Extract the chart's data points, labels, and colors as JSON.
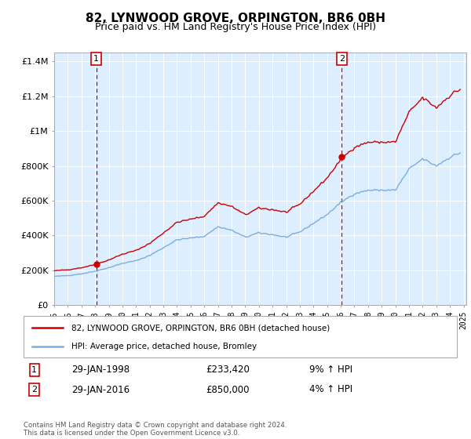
{
  "title": "82, LYNWOOD GROVE, ORPINGTON, BR6 0BH",
  "subtitle": "Price paid vs. HM Land Registry's House Price Index (HPI)",
  "ylim": [
    0,
    1450000
  ],
  "yticks": [
    0,
    200000,
    400000,
    600000,
    800000,
    1000000,
    1200000,
    1400000
  ],
  "ytick_labels": [
    "£0",
    "£200K",
    "£400K",
    "£600K",
    "£800K",
    "£1M",
    "£1.2M",
    "£1.4M"
  ],
  "sale1_year": 1998.08,
  "sale1_price": 233420,
  "sale2_year": 2016.08,
  "sale2_price": 850000,
  "line_color_house": "#cc0000",
  "line_color_hpi": "#7aade0",
  "fill_color_hpi": "#ddeeff",
  "background_color": "#ffffff",
  "grid_color": "#cccccc",
  "legend_house": "82, LYNWOOD GROVE, ORPINGTON, BR6 0BH (detached house)",
  "legend_hpi": "HPI: Average price, detached house, Bromley",
  "annotation1_text": "29-JAN-1998",
  "annotation1_price": "£233,420",
  "annotation1_hpi": "9% ↑ HPI",
  "annotation2_text": "29-JAN-2016",
  "annotation2_price": "£850,000",
  "annotation2_hpi": "4% ↑ HPI",
  "footer": "Contains HM Land Registry data © Crown copyright and database right 2024.\nThis data is licensed under the Open Government Licence v3.0.",
  "hpi_x": [
    1995.0,
    1995.08,
    1995.17,
    1995.25,
    1995.33,
    1995.42,
    1995.5,
    1995.58,
    1995.67,
    1995.75,
    1995.83,
    1995.92,
    1996.0,
    1996.08,
    1996.17,
    1996.25,
    1996.33,
    1996.42,
    1996.5,
    1996.58,
    1996.67,
    1996.75,
    1996.83,
    1996.92,
    1997.0,
    1997.08,
    1997.17,
    1997.25,
    1997.33,
    1997.42,
    1997.5,
    1997.58,
    1997.67,
    1997.75,
    1997.83,
    1997.92,
    1998.0,
    1998.08,
    1998.17,
    1998.25,
    1998.33,
    1998.42,
    1998.5,
    1998.58,
    1998.67,
    1998.75,
    1998.83,
    1998.92,
    1999.0,
    1999.08,
    1999.17,
    1999.25,
    1999.33,
    1999.42,
    1999.5,
    1999.58,
    1999.67,
    1999.75,
    1999.83,
    1999.92,
    2000.0,
    2000.08,
    2000.17,
    2000.25,
    2000.33,
    2000.42,
    2000.5,
    2000.58,
    2000.67,
    2000.75,
    2000.83,
    2000.92,
    2001.0,
    2001.08,
    2001.17,
    2001.25,
    2001.33,
    2001.42,
    2001.5,
    2001.58,
    2001.67,
    2001.75,
    2001.83,
    2001.92,
    2002.0,
    2002.08,
    2002.17,
    2002.25,
    2002.33,
    2002.42,
    2002.5,
    2002.58,
    2002.67,
    2002.75,
    2002.83,
    2002.92,
    2003.0,
    2003.08,
    2003.17,
    2003.25,
    2003.33,
    2003.42,
    2003.5,
    2003.58,
    2003.67,
    2003.75,
    2003.83,
    2003.92,
    2004.0,
    2004.08,
    2004.17,
    2004.25,
    2004.33,
    2004.42,
    2004.5,
    2004.58,
    2004.67,
    2004.75,
    2004.83,
    2004.92,
    2005.0,
    2005.08,
    2005.17,
    2005.25,
    2005.33,
    2005.42,
    2005.5,
    2005.58,
    2005.67,
    2005.75,
    2005.83,
    2005.92,
    2006.0,
    2006.08,
    2006.17,
    2006.25,
    2006.33,
    2006.42,
    2006.5,
    2006.58,
    2006.67,
    2006.75,
    2006.83,
    2006.92,
    2007.0,
    2007.08,
    2007.17,
    2007.25,
    2007.33,
    2007.42,
    2007.5,
    2007.58,
    2007.67,
    2007.75,
    2007.83,
    2007.92,
    2008.0,
    2008.08,
    2008.17,
    2008.25,
    2008.33,
    2008.42,
    2008.5,
    2008.58,
    2008.67,
    2008.75,
    2008.83,
    2008.92,
    2009.0,
    2009.08,
    2009.17,
    2009.25,
    2009.33,
    2009.42,
    2009.5,
    2009.58,
    2009.67,
    2009.75,
    2009.83,
    2009.92,
    2010.0,
    2010.08,
    2010.17,
    2010.25,
    2010.33,
    2010.42,
    2010.5,
    2010.58,
    2010.67,
    2010.75,
    2010.83,
    2010.92,
    2011.0,
    2011.08,
    2011.17,
    2011.25,
    2011.33,
    2011.42,
    2011.5,
    2011.58,
    2011.67,
    2011.75,
    2011.83,
    2011.92,
    2012.0,
    2012.08,
    2012.17,
    2012.25,
    2012.33,
    2012.42,
    2012.5,
    2012.58,
    2012.67,
    2012.75,
    2012.83,
    2012.92,
    2013.0,
    2013.08,
    2013.17,
    2013.25,
    2013.33,
    2013.42,
    2013.5,
    2013.58,
    2013.67,
    2013.75,
    2013.83,
    2013.92,
    2014.0,
    2014.08,
    2014.17,
    2014.25,
    2014.33,
    2014.42,
    2014.5,
    2014.58,
    2014.67,
    2014.75,
    2014.83,
    2014.92,
    2015.0,
    2015.08,
    2015.17,
    2015.25,
    2015.33,
    2015.42,
    2015.5,
    2015.58,
    2015.67,
    2015.75,
    2015.83,
    2015.92,
    2016.0,
    2016.08,
    2016.17,
    2016.25,
    2016.33,
    2016.42,
    2016.5,
    2016.58,
    2016.67,
    2016.75,
    2016.83,
    2016.92,
    2017.0,
    2017.08,
    2017.17,
    2017.25,
    2017.33,
    2017.42,
    2017.5,
    2017.58,
    2017.67,
    2017.75,
    2017.83,
    2017.92,
    2018.0,
    2018.08,
    2018.17,
    2018.25,
    2018.33,
    2018.42,
    2018.5,
    2018.58,
    2018.67,
    2018.75,
    2018.83,
    2018.92,
    2019.0,
    2019.08,
    2019.17,
    2019.25,
    2019.33,
    2019.42,
    2019.5,
    2019.58,
    2019.67,
    2019.75,
    2019.83,
    2019.92,
    2020.0,
    2020.08,
    2020.17,
    2020.25,
    2020.33,
    2020.42,
    2020.5,
    2020.58,
    2020.67,
    2020.75,
    2020.83,
    2020.92,
    2021.0,
    2021.08,
    2021.17,
    2021.25,
    2021.33,
    2021.42,
    2021.5,
    2021.58,
    2021.67,
    2021.75,
    2021.83,
    2021.92,
    2022.0,
    2022.08,
    2022.17,
    2022.25,
    2022.33,
    2022.42,
    2022.5,
    2022.58,
    2022.67,
    2022.75,
    2022.83,
    2022.92,
    2023.0,
    2023.08,
    2023.17,
    2023.25,
    2023.33,
    2023.42,
    2023.5,
    2023.58,
    2023.67,
    2023.75,
    2023.83,
    2023.92,
    2024.0,
    2024.08,
    2024.17,
    2024.25,
    2024.33,
    2024.42,
    2024.5,
    2024.58,
    2024.67,
    2024.75
  ]
}
